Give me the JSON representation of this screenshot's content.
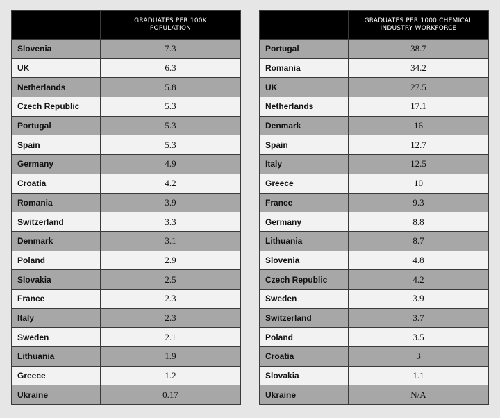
{
  "chart_data": [
    {
      "type": "table",
      "columns": [
        "",
        "GRADUATES PER 100K POPULATION"
      ],
      "rows": [
        {
          "country": "Slovenia",
          "value": "7.3"
        },
        {
          "country": "UK",
          "value": "6.3"
        },
        {
          "country": "Netherlands",
          "value": "5.8"
        },
        {
          "country": "Czech Republic",
          "value": "5.3"
        },
        {
          "country": "Portugal",
          "value": "5.3"
        },
        {
          "country": "Spain",
          "value": "5.3"
        },
        {
          "country": "Germany",
          "value": "4.9"
        },
        {
          "country": "Croatia",
          "value": "4.2"
        },
        {
          "country": "Romania",
          "value": "3.9"
        },
        {
          "country": "Switzerland",
          "value": "3.3"
        },
        {
          "country": "Denmark",
          "value": "3.1"
        },
        {
          "country": "Poland",
          "value": "2.9"
        },
        {
          "country": "Slovakia",
          "value": "2.5"
        },
        {
          "country": "France",
          "value": "2.3"
        },
        {
          "country": "Italy",
          "value": "2.3"
        },
        {
          "country": "Sweden",
          "value": "2.1"
        },
        {
          "country": "Lithuania",
          "value": "1.9"
        },
        {
          "country": "Greece",
          "value": "1.2"
        },
        {
          "country": "Ukraine",
          "value": "0.17"
        }
      ]
    },
    {
      "type": "table",
      "columns": [
        "",
        "GRADUATES PER 1000 CHEMICAL INDUSTRY WORKFORCE"
      ],
      "rows": [
        {
          "country": "Portugal",
          "value": "38.7"
        },
        {
          "country": "Romania",
          "value": "34.2"
        },
        {
          "country": "UK",
          "value": "27.5"
        },
        {
          "country": "Netherlands",
          "value": "17.1"
        },
        {
          "country": "Denmark",
          "value": "16"
        },
        {
          "country": "Spain",
          "value": "12.7"
        },
        {
          "country": "Italy",
          "value": "12.5"
        },
        {
          "country": "Greece",
          "value": "10"
        },
        {
          "country": "France",
          "value": "9.3"
        },
        {
          "country": "Germany",
          "value": "8.8"
        },
        {
          "country": "Lithuania",
          "value": "8.7"
        },
        {
          "country": "Slovenia",
          "value": "4.8"
        },
        {
          "country": "Czech Republic",
          "value": "4.2"
        },
        {
          "country": "Sweden",
          "value": "3.9"
        },
        {
          "country": "Switzerland",
          "value": "3.7"
        },
        {
          "country": "Poland",
          "value": "3.5"
        },
        {
          "country": "Croatia",
          "value": "3"
        },
        {
          "country": "Slovakia",
          "value": "1.1"
        },
        {
          "country": "Ukraine",
          "value": "N/A"
        }
      ]
    }
  ]
}
